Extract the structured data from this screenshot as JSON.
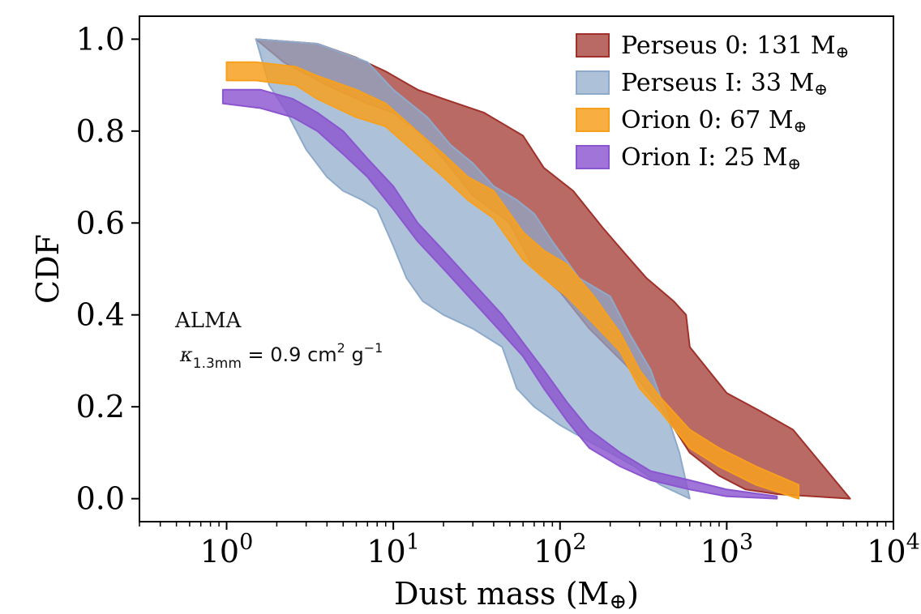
{
  "chart_data": {
    "type": "area",
    "xscale": "log",
    "xlim": [
      0.3,
      10000
    ],
    "ylim": [
      -0.05,
      1.05
    ],
    "xlabel": "Dust mass (M",
    "xlabel_symbol": "⊕",
    "xlabel_close": ")",
    "ylabel": "CDF",
    "grid": false,
    "legend_position": "top-right",
    "x_ticks": [
      {
        "value": 1,
        "base": "10",
        "exp": "0"
      },
      {
        "value": 10,
        "base": "10",
        "exp": "1"
      },
      {
        "value": 100,
        "base": "10",
        "exp": "2"
      },
      {
        "value": 1000,
        "base": "10",
        "exp": "3"
      },
      {
        "value": 10000,
        "base": "10",
        "exp": "4"
      }
    ],
    "y_ticks": [
      {
        "value": 0.0,
        "label": "0.0"
      },
      {
        "value": 0.2,
        "label": "0.2"
      },
      {
        "value": 0.4,
        "label": "0.4"
      },
      {
        "value": 0.6,
        "label": "0.6"
      },
      {
        "value": 0.8,
        "label": "0.8"
      },
      {
        "value": 1.0,
        "label": "1.0"
      }
    ],
    "annotations": {
      "telescope": "ALMA",
      "kappa_symbol": "κ",
      "kappa_sub": "1.3mm",
      "kappa_value": " = 0.9 cm",
      "kappa_exp1": "2",
      "kappa_unit": " g",
      "kappa_exp2": "−1"
    },
    "series": [
      {
        "name": "Perseus 0",
        "legend_label": "Perseus 0: 131 M",
        "legend_symbol": "⊕",
        "color": "#a0302a",
        "opacity": 0.72,
        "upper": [
          [
            1.5,
            1.0
          ],
          [
            3.5,
            0.99
          ],
          [
            6,
            0.96
          ],
          [
            9,
            0.93
          ],
          [
            14,
            0.89
          ],
          [
            20,
            0.87
          ],
          [
            35,
            0.84
          ],
          [
            60,
            0.79
          ],
          [
            80,
            0.72
          ],
          [
            120,
            0.67
          ],
          [
            180,
            0.59
          ],
          [
            250,
            0.53
          ],
          [
            330,
            0.48
          ],
          [
            480,
            0.43
          ],
          [
            570,
            0.4
          ],
          [
            600,
            0.33
          ],
          [
            1000,
            0.23
          ],
          [
            1600,
            0.19
          ],
          [
            2500,
            0.15
          ],
          [
            5500,
            0.0
          ]
        ],
        "lower": [
          [
            1.5,
            1.0
          ],
          [
            2.2,
            0.95
          ],
          [
            4,
            0.9
          ],
          [
            7,
            0.86
          ],
          [
            10,
            0.84
          ],
          [
            14,
            0.8
          ],
          [
            20,
            0.74
          ],
          [
            30,
            0.66
          ],
          [
            50,
            0.6
          ],
          [
            70,
            0.5
          ],
          [
            100,
            0.45
          ],
          [
            150,
            0.37
          ],
          [
            250,
            0.29
          ],
          [
            400,
            0.2
          ],
          [
            600,
            0.1
          ],
          [
            900,
            0.05
          ],
          [
            1300,
            0.02
          ],
          [
            2000,
            0.01
          ],
          [
            5500,
            0.0
          ]
        ]
      },
      {
        "name": "Perseus I",
        "legend_label": "Perseus I: 33 M",
        "legend_symbol": "⊕",
        "color": "#8eaacb",
        "opacity": 0.72,
        "upper": [
          [
            1.5,
            1.0
          ],
          [
            3.5,
            0.99
          ],
          [
            7,
            0.95
          ],
          [
            10,
            0.89
          ],
          [
            16,
            0.83
          ],
          [
            22,
            0.77
          ],
          [
            30,
            0.73
          ],
          [
            40,
            0.68
          ],
          [
            55,
            0.65
          ],
          [
            70,
            0.62
          ],
          [
            90,
            0.56
          ],
          [
            130,
            0.48
          ],
          [
            200,
            0.44
          ],
          [
            260,
            0.36
          ],
          [
            350,
            0.28
          ],
          [
            450,
            0.17
          ],
          [
            520,
            0.1
          ],
          [
            600,
            0.0
          ]
        ],
        "lower": [
          [
            1.5,
            1.0
          ],
          [
            1.8,
            0.9
          ],
          [
            2.3,
            0.84
          ],
          [
            3.0,
            0.76
          ],
          [
            4.0,
            0.7
          ],
          [
            5.0,
            0.67
          ],
          [
            6.5,
            0.65
          ],
          [
            8.0,
            0.63
          ],
          [
            10,
            0.55
          ],
          [
            12,
            0.48
          ],
          [
            15,
            0.43
          ],
          [
            20,
            0.4
          ],
          [
            30,
            0.37
          ],
          [
            45,
            0.33
          ],
          [
            55,
            0.24
          ],
          [
            70,
            0.2
          ],
          [
            100,
            0.16
          ],
          [
            140,
            0.13
          ],
          [
            200,
            0.1
          ],
          [
            280,
            0.07
          ],
          [
            400,
            0.03
          ],
          [
            600,
            0.0
          ]
        ]
      },
      {
        "name": "Orion 0",
        "legend_label": "Orion 0: 67 M",
        "legend_symbol": "⊕",
        "color": "#f7a01e",
        "opacity": 0.85,
        "upper": [
          [
            1.0,
            0.95
          ],
          [
            1.5,
            0.95
          ],
          [
            2.6,
            0.94
          ],
          [
            3.5,
            0.92
          ],
          [
            6,
            0.89
          ],
          [
            9,
            0.86
          ],
          [
            12,
            0.82
          ],
          [
            16,
            0.78
          ],
          [
            20,
            0.75
          ],
          [
            28,
            0.7
          ],
          [
            40,
            0.67
          ],
          [
            60,
            0.58
          ],
          [
            80,
            0.54
          ],
          [
            110,
            0.51
          ],
          [
            160,
            0.44
          ],
          [
            230,
            0.36
          ],
          [
            300,
            0.28
          ],
          [
            400,
            0.22
          ],
          [
            600,
            0.15
          ],
          [
            900,
            0.11
          ],
          [
            1500,
            0.07
          ],
          [
            2700,
            0.03
          ]
        ],
        "lower": [
          [
            1.0,
            0.91
          ],
          [
            1.5,
            0.91
          ],
          [
            2.6,
            0.9
          ],
          [
            3.5,
            0.87
          ],
          [
            6,
            0.83
          ],
          [
            9,
            0.81
          ],
          [
            12,
            0.77
          ],
          [
            16,
            0.73
          ],
          [
            20,
            0.7
          ],
          [
            28,
            0.65
          ],
          [
            40,
            0.61
          ],
          [
            60,
            0.52
          ],
          [
            80,
            0.48
          ],
          [
            110,
            0.44
          ],
          [
            160,
            0.38
          ],
          [
            230,
            0.32
          ],
          [
            300,
            0.24
          ],
          [
            400,
            0.19
          ],
          [
            600,
            0.11
          ],
          [
            900,
            0.07
          ],
          [
            1500,
            0.03
          ],
          [
            2700,
            0.0
          ]
        ]
      },
      {
        "name": "Orion I",
        "legend_label": "Orion I: 25 M",
        "legend_symbol": "⊕",
        "color": "#8b55d0",
        "opacity": 0.82,
        "upper": [
          [
            0.95,
            0.89
          ],
          [
            1.6,
            0.89
          ],
          [
            2.5,
            0.87
          ],
          [
            3.5,
            0.84
          ],
          [
            5,
            0.8
          ],
          [
            7,
            0.74
          ],
          [
            10,
            0.68
          ],
          [
            14,
            0.6
          ],
          [
            20,
            0.54
          ],
          [
            30,
            0.47
          ],
          [
            45,
            0.4
          ],
          [
            60,
            0.34
          ],
          [
            80,
            0.28
          ],
          [
            110,
            0.21
          ],
          [
            150,
            0.15
          ],
          [
            230,
            0.1
          ],
          [
            350,
            0.06
          ],
          [
            600,
            0.04
          ],
          [
            1000,
            0.02
          ],
          [
            2000,
            0.005
          ]
        ],
        "lower": [
          [
            0.95,
            0.86
          ],
          [
            1.6,
            0.85
          ],
          [
            2.5,
            0.83
          ],
          [
            3.5,
            0.8
          ],
          [
            5,
            0.75
          ],
          [
            7,
            0.7
          ],
          [
            10,
            0.63
          ],
          [
            14,
            0.56
          ],
          [
            20,
            0.5
          ],
          [
            30,
            0.43
          ],
          [
            45,
            0.36
          ],
          [
            60,
            0.31
          ],
          [
            80,
            0.24
          ],
          [
            110,
            0.17
          ],
          [
            150,
            0.11
          ],
          [
            230,
            0.07
          ],
          [
            350,
            0.04
          ],
          [
            600,
            0.02
          ],
          [
            1000,
            0.005
          ],
          [
            2000,
            0.0
          ]
        ]
      }
    ]
  }
}
